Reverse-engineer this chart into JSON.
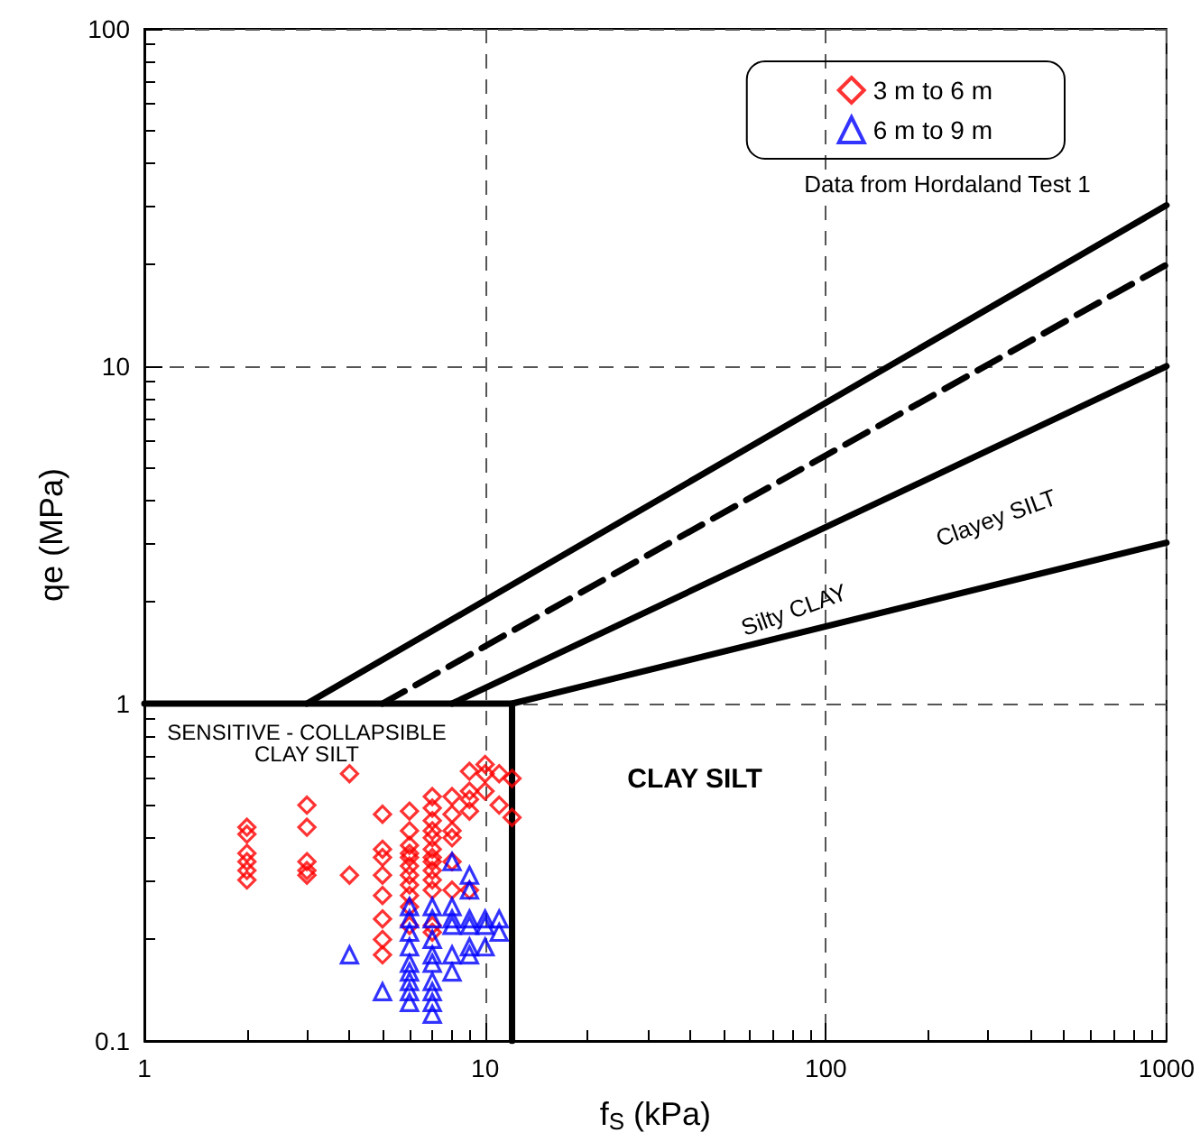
{
  "chart_data": {
    "type": "scatter",
    "xlabel": "f$_{S}$ (kPa)",
    "ylabel": "qe (MPa)",
    "log": "xy",
    "grid": true,
    "legend": "top right",
    "xlim": [
      1,
      1000
    ],
    "ylim": [
      0.1,
      100
    ],
    "xticks": [
      1,
      {
        "value": 2,
        "label": null
      },
      {
        "value": 3,
        "label": null
      },
      {
        "value": 4,
        "label": null
      },
      {
        "value": 5,
        "label": null
      },
      {
        "value": 6,
        "label": null
      },
      {
        "value": 7,
        "label": null
      },
      {
        "value": 8,
        "label": null
      },
      {
        "value": 9,
        "label": null
      },
      10,
      {
        "value": 20,
        "label": null
      },
      {
        "value": 30,
        "label": null
      },
      {
        "value": 40,
        "label": null
      },
      {
        "value": 50,
        "label": null
      },
      {
        "value": 60,
        "label": null
      },
      {
        "value": 70,
        "label": null
      },
      {
        "value": 80,
        "label": null
      },
      {
        "value": 90,
        "label": null
      },
      100,
      {
        "value": 200,
        "label": null
      },
      {
        "value": 300,
        "label": null
      },
      {
        "value": 400,
        "label": null
      },
      {
        "value": 500,
        "label": null
      },
      {
        "value": 600,
        "label": null
      },
      {
        "value": 700,
        "label": null
      },
      {
        "value": 800,
        "label": null
      },
      {
        "value": 900,
        "label": null
      },
      1000
    ],
    "yticks": [
      0.1,
      {
        "value": 0.2,
        "label": null
      },
      {
        "value": 0.3,
        "label": null
      },
      {
        "value": 0.4,
        "label": null
      },
      {
        "value": 0.5,
        "label": null
      },
      {
        "value": 0.6,
        "label": null
      },
      {
        "value": 0.7,
        "label": null
      },
      {
        "value": 0.8,
        "label": null
      },
      {
        "value": 0.9,
        "label": null
      },
      1,
      {
        "value": 2,
        "label": null
      },
      {
        "value": 3,
        "label": null
      },
      {
        "value": 4,
        "label": null
      },
      {
        "value": 5,
        "label": null
      },
      {
        "value": 6,
        "label": null
      },
      {
        "value": 7,
        "label": null
      },
      {
        "value": 8,
        "label": null
      },
      {
        "value": 9,
        "label": null
      },
      10,
      {
        "value": 20,
        "label": null
      },
      {
        "value": 30,
        "label": null
      },
      {
        "value": 40,
        "label": null
      },
      {
        "value": 50,
        "label": null
      },
      {
        "value": 60,
        "label": null
      },
      {
        "value": 70,
        "label": null
      },
      {
        "value": 80,
        "label": null
      },
      {
        "value": 90,
        "label": null
      },
      100
    ],
    "series": [
      {
        "type": "line",
        "color": "#000000",
        "line_style": "solid",
        "x": [
          3,
          1000
        ],
        "values": [
          1,
          30
        ]
      },
      {
        "type": "line",
        "color": "#000000",
        "line_style": "dashed",
        "x": [
          5,
          1000
        ],
        "values": [
          1,
          20
        ]
      },
      {
        "type": "line",
        "color": "#000000",
        "line_style": "solid",
        "x": [
          8,
          1000
        ],
        "values": [
          1,
          10
        ]
      },
      {
        "type": "line",
        "color": "#000000",
        "line_style": "solid",
        "x": [
          1,
          12,
          1000
        ],
        "values": [
          1,
          1,
          3
        ]
      },
      {
        "type": "line",
        "color": "#000000",
        "line_style": "solid",
        "x": [
          12,
          12
        ],
        "values": [
          1,
          0.1
        ]
      },
      {
        "name": "3 m to 6 m",
        "color": "#ff0000",
        "marker": "diamond",
        "x": [
          2,
          2,
          2,
          2,
          2,
          2,
          3,
          3,
          3,
          3,
          3,
          4,
          4,
          5,
          5,
          5,
          5,
          5,
          5,
          5,
          5,
          6,
          6,
          6,
          6,
          6,
          6,
          6,
          6,
          6,
          6,
          6,
          7,
          7,
          7,
          7,
          7,
          7,
          7,
          7,
          7,
          7,
          7,
          7,
          7,
          8,
          8,
          8,
          8,
          8,
          8,
          9,
          9,
          9,
          9,
          9,
          10,
          10,
          10,
          11,
          11,
          12,
          12
        ],
        "values": [
          0.43,
          0.41,
          0.36,
          0.34,
          0.32,
          0.3,
          0.5,
          0.43,
          0.34,
          0.32,
          0.31,
          0.62,
          0.31,
          0.47,
          0.37,
          0.35,
          0.31,
          0.27,
          0.23,
          0.2,
          0.18,
          0.48,
          0.42,
          0.38,
          0.36,
          0.35,
          0.33,
          0.31,
          0.29,
          0.27,
          0.25,
          0.22,
          0.53,
          0.49,
          0.45,
          0.42,
          0.4,
          0.37,
          0.35,
          0.34,
          0.32,
          0.3,
          0.28,
          0.22,
          0.21,
          0.53,
          0.47,
          0.42,
          0.4,
          0.34,
          0.28,
          0.63,
          0.55,
          0.52,
          0.48,
          0.28,
          0.66,
          0.62,
          0.55,
          0.62,
          0.5,
          0.6,
          0.46
        ]
      },
      {
        "name": "6 m to 9 m",
        "color": "#0000ff",
        "marker": "triangle",
        "x": [
          4,
          5,
          6,
          6,
          6,
          6,
          6,
          6,
          6,
          6,
          6,
          7,
          7,
          7,
          7,
          7,
          7,
          7,
          7,
          7,
          8,
          8,
          8,
          8,
          8,
          8,
          9,
          9,
          9,
          9,
          9,
          9,
          10,
          10,
          10,
          11,
          11
        ],
        "values": [
          0.18,
          0.14,
          0.25,
          0.23,
          0.21,
          0.19,
          0.17,
          0.16,
          0.15,
          0.14,
          0.13,
          0.25,
          0.23,
          0.2,
          0.18,
          0.17,
          0.15,
          0.14,
          0.13,
          0.12,
          0.34,
          0.25,
          0.23,
          0.22,
          0.18,
          0.16,
          0.31,
          0.28,
          0.23,
          0.22,
          0.19,
          0.18,
          0.23,
          0.22,
          0.19,
          0.23,
          0.21
        ]
      }
    ],
    "annotations": [
      "Data from Hordaland Test 1",
      "SENSITIVE - COLLAPSIBLE\nCLAY SILT",
      "CLAY SILT",
      "Silty CLAY",
      "Clayey SILT"
    ]
  }
}
